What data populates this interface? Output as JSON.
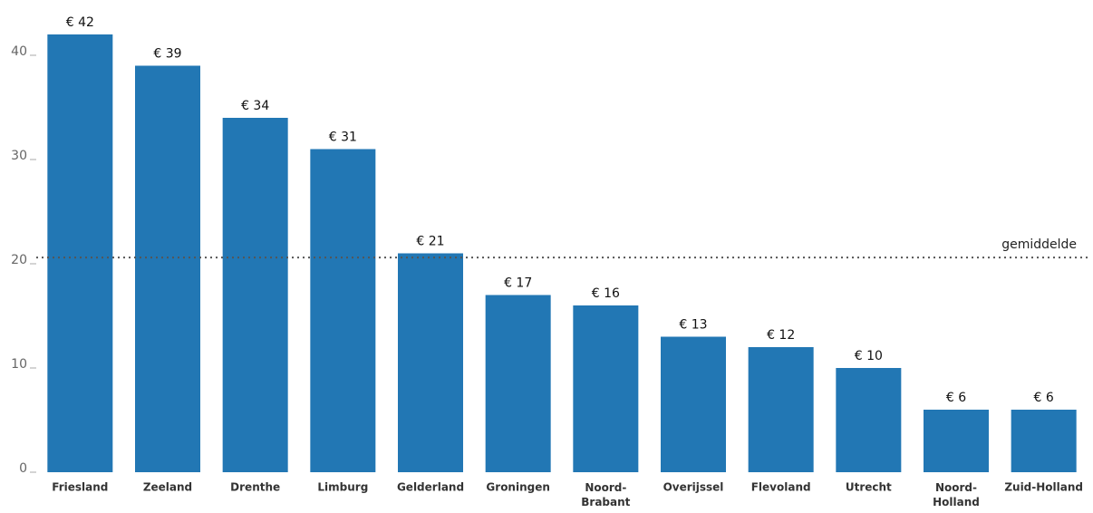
{
  "chart_data": {
    "type": "bar",
    "categories": [
      "Friesland",
      "Zeeland",
      "Drenthe",
      "Limburg",
      "Gelderland",
      "Groningen",
      "Noord-\nBrabant",
      "Overijssel",
      "Flevoland",
      "Utrecht",
      "Noord-\nHolland",
      "Zuid-Holland"
    ],
    "values": [
      42,
      39,
      34,
      31,
      21,
      17,
      16,
      13,
      12,
      10,
      6,
      6
    ],
    "value_labels": [
      "€ 42",
      "€ 39",
      "€ 34",
      "€ 31",
      "€ 21",
      "€ 17",
      "€ 16",
      "€ 13",
      "€ 12",
      "€ 10",
      "€ 6",
      "€ 6"
    ],
    "color": "#2277b4",
    "ylim": [
      0,
      45
    ],
    "yticks": [
      0,
      10,
      20,
      30,
      40
    ],
    "average": {
      "label": "gemiddelde",
      "value": 20.6
    }
  }
}
